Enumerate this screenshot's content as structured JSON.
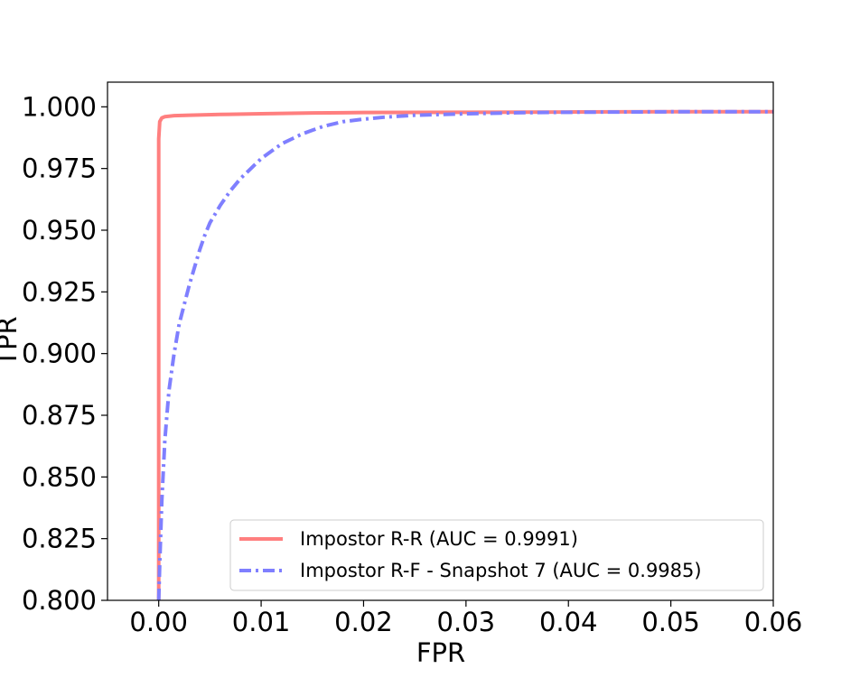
{
  "chart_data": {
    "type": "line",
    "title": "",
    "xlabel": "FPR",
    "ylabel": "TPR",
    "xlim": [
      -0.005,
      0.06
    ],
    "ylim": [
      0.8,
      1.01
    ],
    "xticks": [
      0.0,
      0.01,
      0.02,
      0.03,
      0.04,
      0.05,
      0.06
    ],
    "xtick_labels": [
      "0.00",
      "0.01",
      "0.02",
      "0.03",
      "0.04",
      "0.05",
      "0.06"
    ],
    "yticks": [
      0.8,
      0.825,
      0.85,
      0.875,
      0.9,
      0.925,
      0.95,
      0.975,
      1.0
    ],
    "ytick_labels": [
      "0.800",
      "0.825",
      "0.850",
      "0.875",
      "0.900",
      "0.925",
      "0.950",
      "0.975",
      "1.000"
    ],
    "grid": false,
    "legend_position": "lower-right",
    "series": [
      {
        "name": "Impostor R-R (AUC = 0.9991)",
        "color": "#ff7f7f",
        "style": "solid",
        "x": [
          0.0,
          0.0,
          0.0,
          0.0,
          0.0001,
          0.0003,
          0.0006,
          0.001,
          0.0015,
          0.003,
          0.006,
          0.01,
          0.015,
          0.02,
          0.03,
          0.04,
          0.05,
          0.06
        ],
        "y": [
          0.8,
          0.9,
          0.95,
          0.987,
          0.994,
          0.9955,
          0.996,
          0.9962,
          0.9964,
          0.9966,
          0.9969,
          0.9972,
          0.9975,
          0.9977,
          0.9978,
          0.9979,
          0.998,
          0.998
        ]
      },
      {
        "name": "Impostor R-F - Snapshot 7 (AUC = 0.9985)",
        "color": "#7f7fff",
        "style": "dashdot",
        "x": [
          0.0,
          0.0001,
          0.0003,
          0.0006,
          0.001,
          0.0015,
          0.002,
          0.0025,
          0.003,
          0.0035,
          0.004,
          0.0045,
          0.005,
          0.006,
          0.007,
          0.008,
          0.009,
          0.01,
          0.011,
          0.012,
          0.013,
          0.014,
          0.015,
          0.016,
          0.017,
          0.018,
          0.02,
          0.022,
          0.025,
          0.03,
          0.035,
          0.04,
          0.05,
          0.06
        ],
        "y": [
          0.8,
          0.815,
          0.84,
          0.865,
          0.885,
          0.9,
          0.912,
          0.92,
          0.928,
          0.935,
          0.942,
          0.948,
          0.953,
          0.96,
          0.966,
          0.971,
          0.975,
          0.979,
          0.982,
          0.985,
          0.987,
          0.989,
          0.9905,
          0.992,
          0.993,
          0.994,
          0.995,
          0.9958,
          0.9966,
          0.9972,
          0.9976,
          0.9978,
          0.998,
          0.998
        ]
      }
    ]
  }
}
